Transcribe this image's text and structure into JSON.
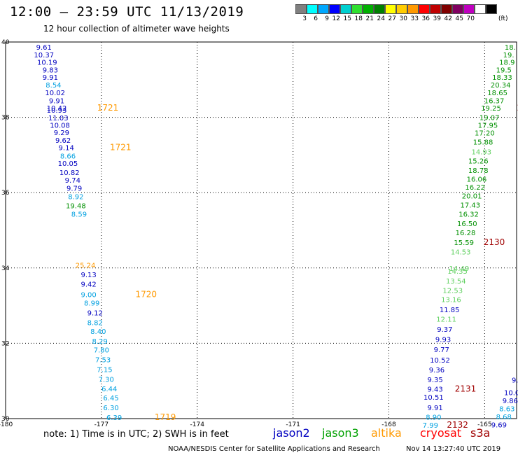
{
  "header": {
    "title": "12:00 – 23:59 UTC 11/13/2019",
    "subtitle": "12 hour collection of altimeter wave heights"
  },
  "color_scale": {
    "colors": [
      "#808080",
      "#00ffff",
      "#00a8ff",
      "#0000ff",
      "#00d0d0",
      "#30e030",
      "#00b000",
      "#008000",
      "#ffff00",
      "#ffcc00",
      "#ff9900",
      "#ff0000",
      "#c00000",
      "#800000",
      "#800060",
      "#c000c0",
      "#ffffff",
      "#000000"
    ],
    "labels": [
      "3",
      "6",
      "9",
      "12",
      "15",
      "18",
      "21",
      "24",
      "27",
      "30",
      "33",
      "36",
      "39",
      "42",
      "45",
      "70"
    ],
    "unit": "(ft)"
  },
  "axes": {
    "x_ticks": [
      "-180",
      "-177",
      "-174",
      "-171",
      "-168",
      "-165"
    ],
    "y_ticks": [
      "40",
      "38",
      "36",
      "34",
      "32",
      "30"
    ]
  },
  "colors": {
    "jason2": "#0000c0",
    "cyan": "#00a0e0",
    "green": "#009000",
    "lightgreen": "#60d060",
    "altika": "#ff9900",
    "cryosat": "#a00000"
  },
  "chart_data": {
    "type": "scatter",
    "x_range": [
      -180,
      -164
    ],
    "y_range": [
      30,
      40
    ],
    "track_west": [
      {
        "lat": 39.87,
        "lon": -178.8,
        "v": "9.61",
        "c": "jason2"
      },
      {
        "lat": 39.67,
        "lon": -178.8,
        "v": "10.37",
        "c": "jason2"
      },
      {
        "lat": 39.47,
        "lon": -178.7,
        "v": "10.19",
        "c": "jason2"
      },
      {
        "lat": 39.27,
        "lon": -178.6,
        "v": "9.83",
        "c": "jason2"
      },
      {
        "lat": 39.07,
        "lon": -178.6,
        "v": "9.91",
        "c": "jason2"
      },
      {
        "lat": 38.87,
        "lon": -178.5,
        "v": "8.54",
        "c": "cyan"
      },
      {
        "lat": 38.66,
        "lon": -178.45,
        "v": "10.02",
        "c": "jason2"
      },
      {
        "lat": 38.45,
        "lon": -178.4,
        "v": "9.91",
        "c": "jason2"
      },
      {
        "lat": 38.25,
        "lon": -178.4,
        "v": "10.42",
        "c": "jason2"
      },
      {
        "lat": 38.2,
        "lon": -178.4,
        "v": "10.93",
        "c": "jason2"
      },
      {
        "lat": 37.99,
        "lon": -178.35,
        "v": "11.03",
        "c": "jason2"
      },
      {
        "lat": 37.8,
        "lon": -178.3,
        "v": "10.08",
        "c": "jason2"
      },
      {
        "lat": 37.6,
        "lon": -178.25,
        "v": "9.29",
        "c": "jason2"
      },
      {
        "lat": 37.4,
        "lon": -178.2,
        "v": "9.62",
        "c": "jason2"
      },
      {
        "lat": 37.2,
        "lon": -178.1,
        "v": "9.14",
        "c": "jason2"
      },
      {
        "lat": 36.98,
        "lon": -178.05,
        "v": "8.66",
        "c": "cyan"
      },
      {
        "lat": 36.78,
        "lon": -178.05,
        "v": "10.05",
        "c": "jason2"
      },
      {
        "lat": 36.54,
        "lon": -178.0,
        "v": "10.82",
        "c": "jason2"
      },
      {
        "lat": 36.34,
        "lon": -177.9,
        "v": "9.74",
        "c": "jason2"
      },
      {
        "lat": 36.12,
        "lon": -177.85,
        "v": "9.79",
        "c": "jason2"
      },
      {
        "lat": 35.9,
        "lon": -177.8,
        "v": "8.92",
        "c": "cyan"
      },
      {
        "lat": 35.66,
        "lon": -177.8,
        "v": "19.48",
        "c": "green"
      },
      {
        "lat": 35.44,
        "lon": -177.7,
        "v": "8.59",
        "c": "cyan"
      },
      {
        "lat": 34.08,
        "lon": -177.5,
        "v": "25.24",
        "c": "altika"
      },
      {
        "lat": 33.83,
        "lon": -177.4,
        "v": "9.13",
        "c": "jason2"
      },
      {
        "lat": 33.58,
        "lon": -177.4,
        "v": "9.42",
        "c": "jason2"
      },
      {
        "lat": 33.3,
        "lon": -177.4,
        "v": "9.00",
        "c": "cyan"
      },
      {
        "lat": 33.08,
        "lon": -177.3,
        "v": "8.99",
        "c": "cyan"
      },
      {
        "lat": 32.82,
        "lon": -177.2,
        "v": "9.12",
        "c": "jason2"
      },
      {
        "lat": 32.56,
        "lon": -177.2,
        "v": "8.82",
        "c": "cyan"
      },
      {
        "lat": 32.32,
        "lon": -177.1,
        "v": "8.40",
        "c": "cyan"
      },
      {
        "lat": 32.06,
        "lon": -177.05,
        "v": "8.29",
        "c": "cyan"
      },
      {
        "lat": 31.83,
        "lon": -177.0,
        "v": "7.80",
        "c": "cyan"
      },
      {
        "lat": 31.57,
        "lon": -176.95,
        "v": "7.53",
        "c": "cyan"
      },
      {
        "lat": 31.31,
        "lon": -176.9,
        "v": "7.15",
        "c": "cyan"
      },
      {
        "lat": 31.05,
        "lon": -176.85,
        "v": "7.30",
        "c": "cyan"
      },
      {
        "lat": 30.8,
        "lon": -176.75,
        "v": "6.44",
        "c": "cyan"
      },
      {
        "lat": 30.56,
        "lon": -176.7,
        "v": "6.45",
        "c": "cyan"
      },
      {
        "lat": 30.3,
        "lon": -176.7,
        "v": "6.30",
        "c": "cyan"
      },
      {
        "lat": 30.04,
        "lon": -176.6,
        "v": "6.39",
        "c": "cyan"
      }
    ],
    "track_east": [
      {
        "lat": 39.87,
        "lon": -164.2,
        "v": "18.",
        "c": "green"
      },
      {
        "lat": 39.67,
        "lon": -164.25,
        "v": "19.",
        "c": "green"
      },
      {
        "lat": 39.47,
        "lon": -164.3,
        "v": "18.9",
        "c": "green"
      },
      {
        "lat": 39.27,
        "lon": -164.4,
        "v": "19.5",
        "c": "green"
      },
      {
        "lat": 39.07,
        "lon": -164.45,
        "v": "18.33",
        "c": "green"
      },
      {
        "lat": 38.87,
        "lon": -164.5,
        "v": "20.34",
        "c": "green"
      },
      {
        "lat": 38.66,
        "lon": -164.6,
        "v": "18.65",
        "c": "green"
      },
      {
        "lat": 38.45,
        "lon": -164.7,
        "v": "16.37",
        "c": "green"
      },
      {
        "lat": 38.25,
        "lon": -164.8,
        "v": "19.25",
        "c": "green"
      },
      {
        "lat": 38.0,
        "lon": -164.85,
        "v": "19.07",
        "c": "green"
      },
      {
        "lat": 37.8,
        "lon": -164.9,
        "v": "17.95",
        "c": "green"
      },
      {
        "lat": 37.59,
        "lon": -165.0,
        "v": "17.20",
        "c": "green"
      },
      {
        "lat": 37.35,
        "lon": -165.05,
        "v": "15.88",
        "c": "green"
      },
      {
        "lat": 37.09,
        "lon": -165.1,
        "v": "14.93",
        "c": "lightgreen"
      },
      {
        "lat": 36.85,
        "lon": -165.2,
        "v": "15.26",
        "c": "green"
      },
      {
        "lat": 36.6,
        "lon": -165.2,
        "v": "18.78",
        "c": "green"
      },
      {
        "lat": 36.37,
        "lon": -165.25,
        "v": "16.06",
        "c": "green"
      },
      {
        "lat": 36.15,
        "lon": -165.3,
        "v": "16.22",
        "c": "green"
      },
      {
        "lat": 35.92,
        "lon": -165.4,
        "v": "20.01",
        "c": "green"
      },
      {
        "lat": 35.68,
        "lon": -165.45,
        "v": "17.43",
        "c": "green"
      },
      {
        "lat": 35.44,
        "lon": -165.5,
        "v": "16.32",
        "c": "green"
      },
      {
        "lat": 35.19,
        "lon": -165.55,
        "v": "16.50",
        "c": "green"
      },
      {
        "lat": 34.94,
        "lon": -165.6,
        "v": "16.28",
        "c": "green"
      },
      {
        "lat": 34.68,
        "lon": -165.65,
        "v": "15.59",
        "c": "green"
      },
      {
        "lat": 34.43,
        "lon": -165.75,
        "v": "14.53",
        "c": "lightgreen"
      },
      {
        "lat": 34.0,
        "lon": -165.8,
        "v": "14.49",
        "c": "lightgreen"
      },
      {
        "lat": 33.92,
        "lon": -165.85,
        "v": "14.35",
        "c": "lightgreen"
      },
      {
        "lat": 33.66,
        "lon": -165.9,
        "v": "13.54",
        "c": "lightgreen"
      },
      {
        "lat": 33.41,
        "lon": -166.0,
        "v": "12.53",
        "c": "lightgreen"
      },
      {
        "lat": 33.17,
        "lon": -166.05,
        "v": "13.16",
        "c": "lightgreen"
      },
      {
        "lat": 32.9,
        "lon": -166.1,
        "v": "11.85",
        "c": "jason2"
      },
      {
        "lat": 32.65,
        "lon": -166.2,
        "v": "12.11",
        "c": "lightgreen"
      },
      {
        "lat": 32.38,
        "lon": -166.25,
        "v": "9.37",
        "c": "jason2"
      },
      {
        "lat": 32.11,
        "lon": -166.3,
        "v": "9.93",
        "c": "jason2"
      },
      {
        "lat": 31.84,
        "lon": -166.35,
        "v": "9.77",
        "c": "jason2"
      },
      {
        "lat": 31.56,
        "lon": -166.4,
        "v": "10.52",
        "c": "jason2"
      },
      {
        "lat": 31.3,
        "lon": -166.5,
        "v": "9.36",
        "c": "jason2"
      },
      {
        "lat": 31.04,
        "lon": -166.55,
        "v": "9.35",
        "c": "jason2"
      },
      {
        "lat": 30.79,
        "lon": -166.55,
        "v": "9.43",
        "c": "jason2"
      },
      {
        "lat": 30.58,
        "lon": -166.6,
        "v": "10.51",
        "c": "jason2"
      },
      {
        "lat": 30.3,
        "lon": -166.55,
        "v": "9.91",
        "c": "jason2"
      },
      {
        "lat": 30.05,
        "lon": -166.6,
        "v": "8.90",
        "c": "cyan"
      },
      {
        "lat": 29.83,
        "lon": -166.7,
        "v": "7.99",
        "c": "cyan"
      }
    ],
    "track_far_east": [
      {
        "lat": 31.03,
        "lon": -164.05,
        "v": "9.",
        "c": "jason2"
      },
      {
        "lat": 30.7,
        "lon": -164.15,
        "v": "10.0",
        "c": "jason2"
      },
      {
        "lat": 30.48,
        "lon": -164.2,
        "v": "9.86",
        "c": "jason2"
      },
      {
        "lat": 30.27,
        "lon": -164.3,
        "v": "8.63",
        "c": "cyan"
      },
      {
        "lat": 30.06,
        "lon": -164.4,
        "v": "8.68",
        "c": "cyan"
      },
      {
        "lat": 29.84,
        "lon": -164.55,
        "v": "9.69",
        "c": "jason2"
      }
    ],
    "time_labels": [
      {
        "lat": 38.25,
        "lon": -176.8,
        "v": "1721",
        "c": "altika"
      },
      {
        "lat": 37.2,
        "lon": -176.4,
        "v": "1721",
        "c": "altika"
      },
      {
        "lat": 33.3,
        "lon": -175.6,
        "v": "1720",
        "c": "altika"
      },
      {
        "lat": 30.04,
        "lon": -175.0,
        "v": "1719",
        "c": "altika"
      },
      {
        "lat": 34.68,
        "lon": -164.7,
        "v": "2130",
        "c": "cryosat"
      },
      {
        "lat": 30.79,
        "lon": -165.6,
        "v": "2131",
        "c": "cryosat"
      },
      {
        "lat": 29.83,
        "lon": -165.85,
        "v": "2132",
        "c": "cryosat"
      },
      {
        "lat": 38.25,
        "lon": -163.9,
        "v": "2",
        "c": "cryosat"
      }
    ]
  },
  "footer": {
    "note": "note: 1) Time is in UTC; 2) SWH is in feet",
    "legend": [
      "jason2",
      "jason3",
      "altika",
      "cryosat",
      "s3a"
    ],
    "credit": "NOAA/NESDIS Center for Satellite Applications and Research",
    "timestamp": "Nov 14 13:27:40 UTC 2019"
  }
}
